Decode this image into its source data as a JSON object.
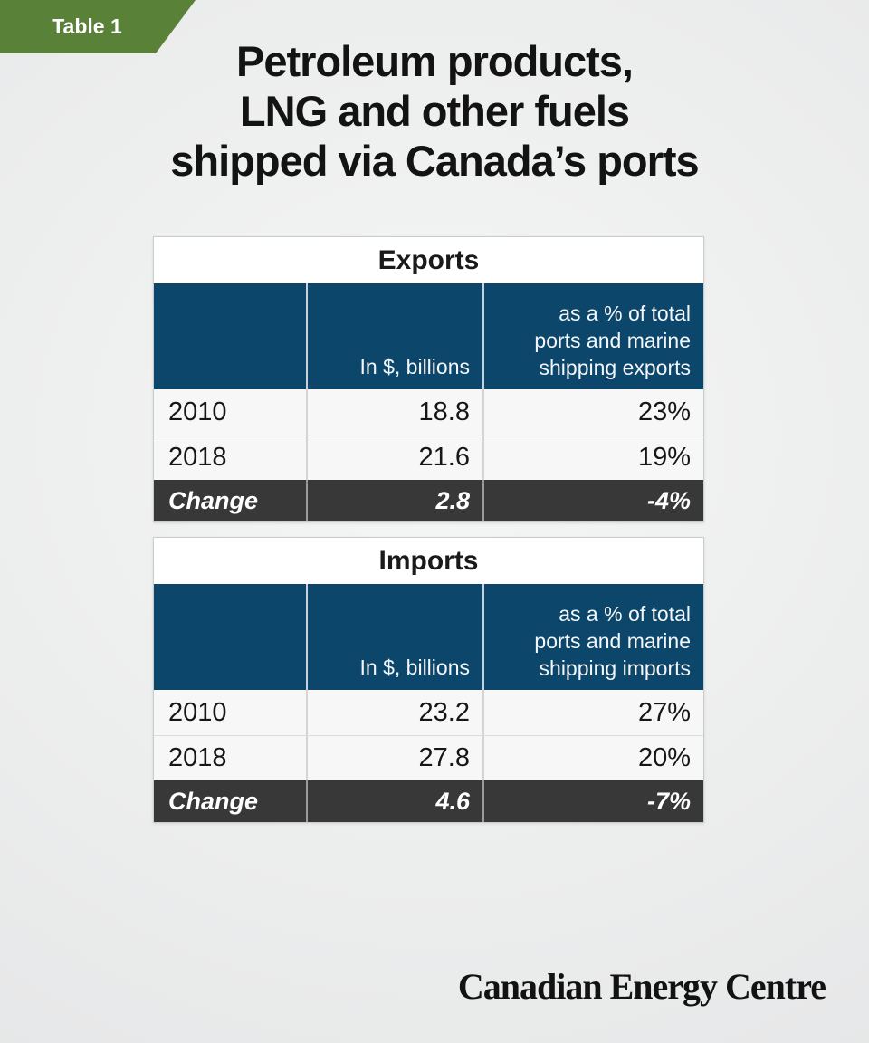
{
  "badge": {
    "label": "Table 1"
  },
  "title_lines": [
    "Petroleum products,",
    "LNG and other fuels",
    "shipped via Canada’s ports"
  ],
  "footer_brand": "Canadian Energy Centre",
  "colors": {
    "badge_green": "#5a8138",
    "header_blue": "#0d466b",
    "change_dark": "#383838",
    "row_light": "#f7f7f8"
  },
  "tables": [
    {
      "name": "Exports",
      "value_header": "In $, billions",
      "pct_header_lines": [
        "as a % of total",
        "ports and marine",
        "shipping exports"
      ],
      "rows": [
        {
          "year": "2010",
          "value": "18.8",
          "pct": "23%"
        },
        {
          "year": "2018",
          "value": "21.6",
          "pct": "19%"
        }
      ],
      "change": {
        "label": "Change",
        "value": "2.8",
        "pct": "-4%"
      }
    },
    {
      "name": "Imports",
      "value_header": "In $, billions",
      "pct_header_lines": [
        "as a % of total",
        "ports and marine",
        "shipping imports"
      ],
      "rows": [
        {
          "year": "2010",
          "value": "23.2",
          "pct": "27%"
        },
        {
          "year": "2018",
          "value": "27.8",
          "pct": "20%"
        }
      ],
      "change": {
        "label": "Change",
        "value": "4.6",
        "pct": "-7%"
      }
    }
  ],
  "chart_data": [
    {
      "type": "table",
      "title": "Exports",
      "columns": [
        "",
        "In $, billions",
        "as a % of total ports and marine shipping exports"
      ],
      "rows": [
        [
          "2010",
          18.8,
          "23%"
        ],
        [
          "2018",
          21.6,
          "19%"
        ],
        [
          "Change",
          2.8,
          "-4%"
        ]
      ]
    },
    {
      "type": "table",
      "title": "Imports",
      "columns": [
        "",
        "In $, billions",
        "as a % of total ports and marine shipping imports"
      ],
      "rows": [
        [
          "2010",
          23.2,
          "27%"
        ],
        [
          "2018",
          27.8,
          "20%"
        ],
        [
          "Change",
          4.6,
          "-7%"
        ]
      ]
    }
  ]
}
